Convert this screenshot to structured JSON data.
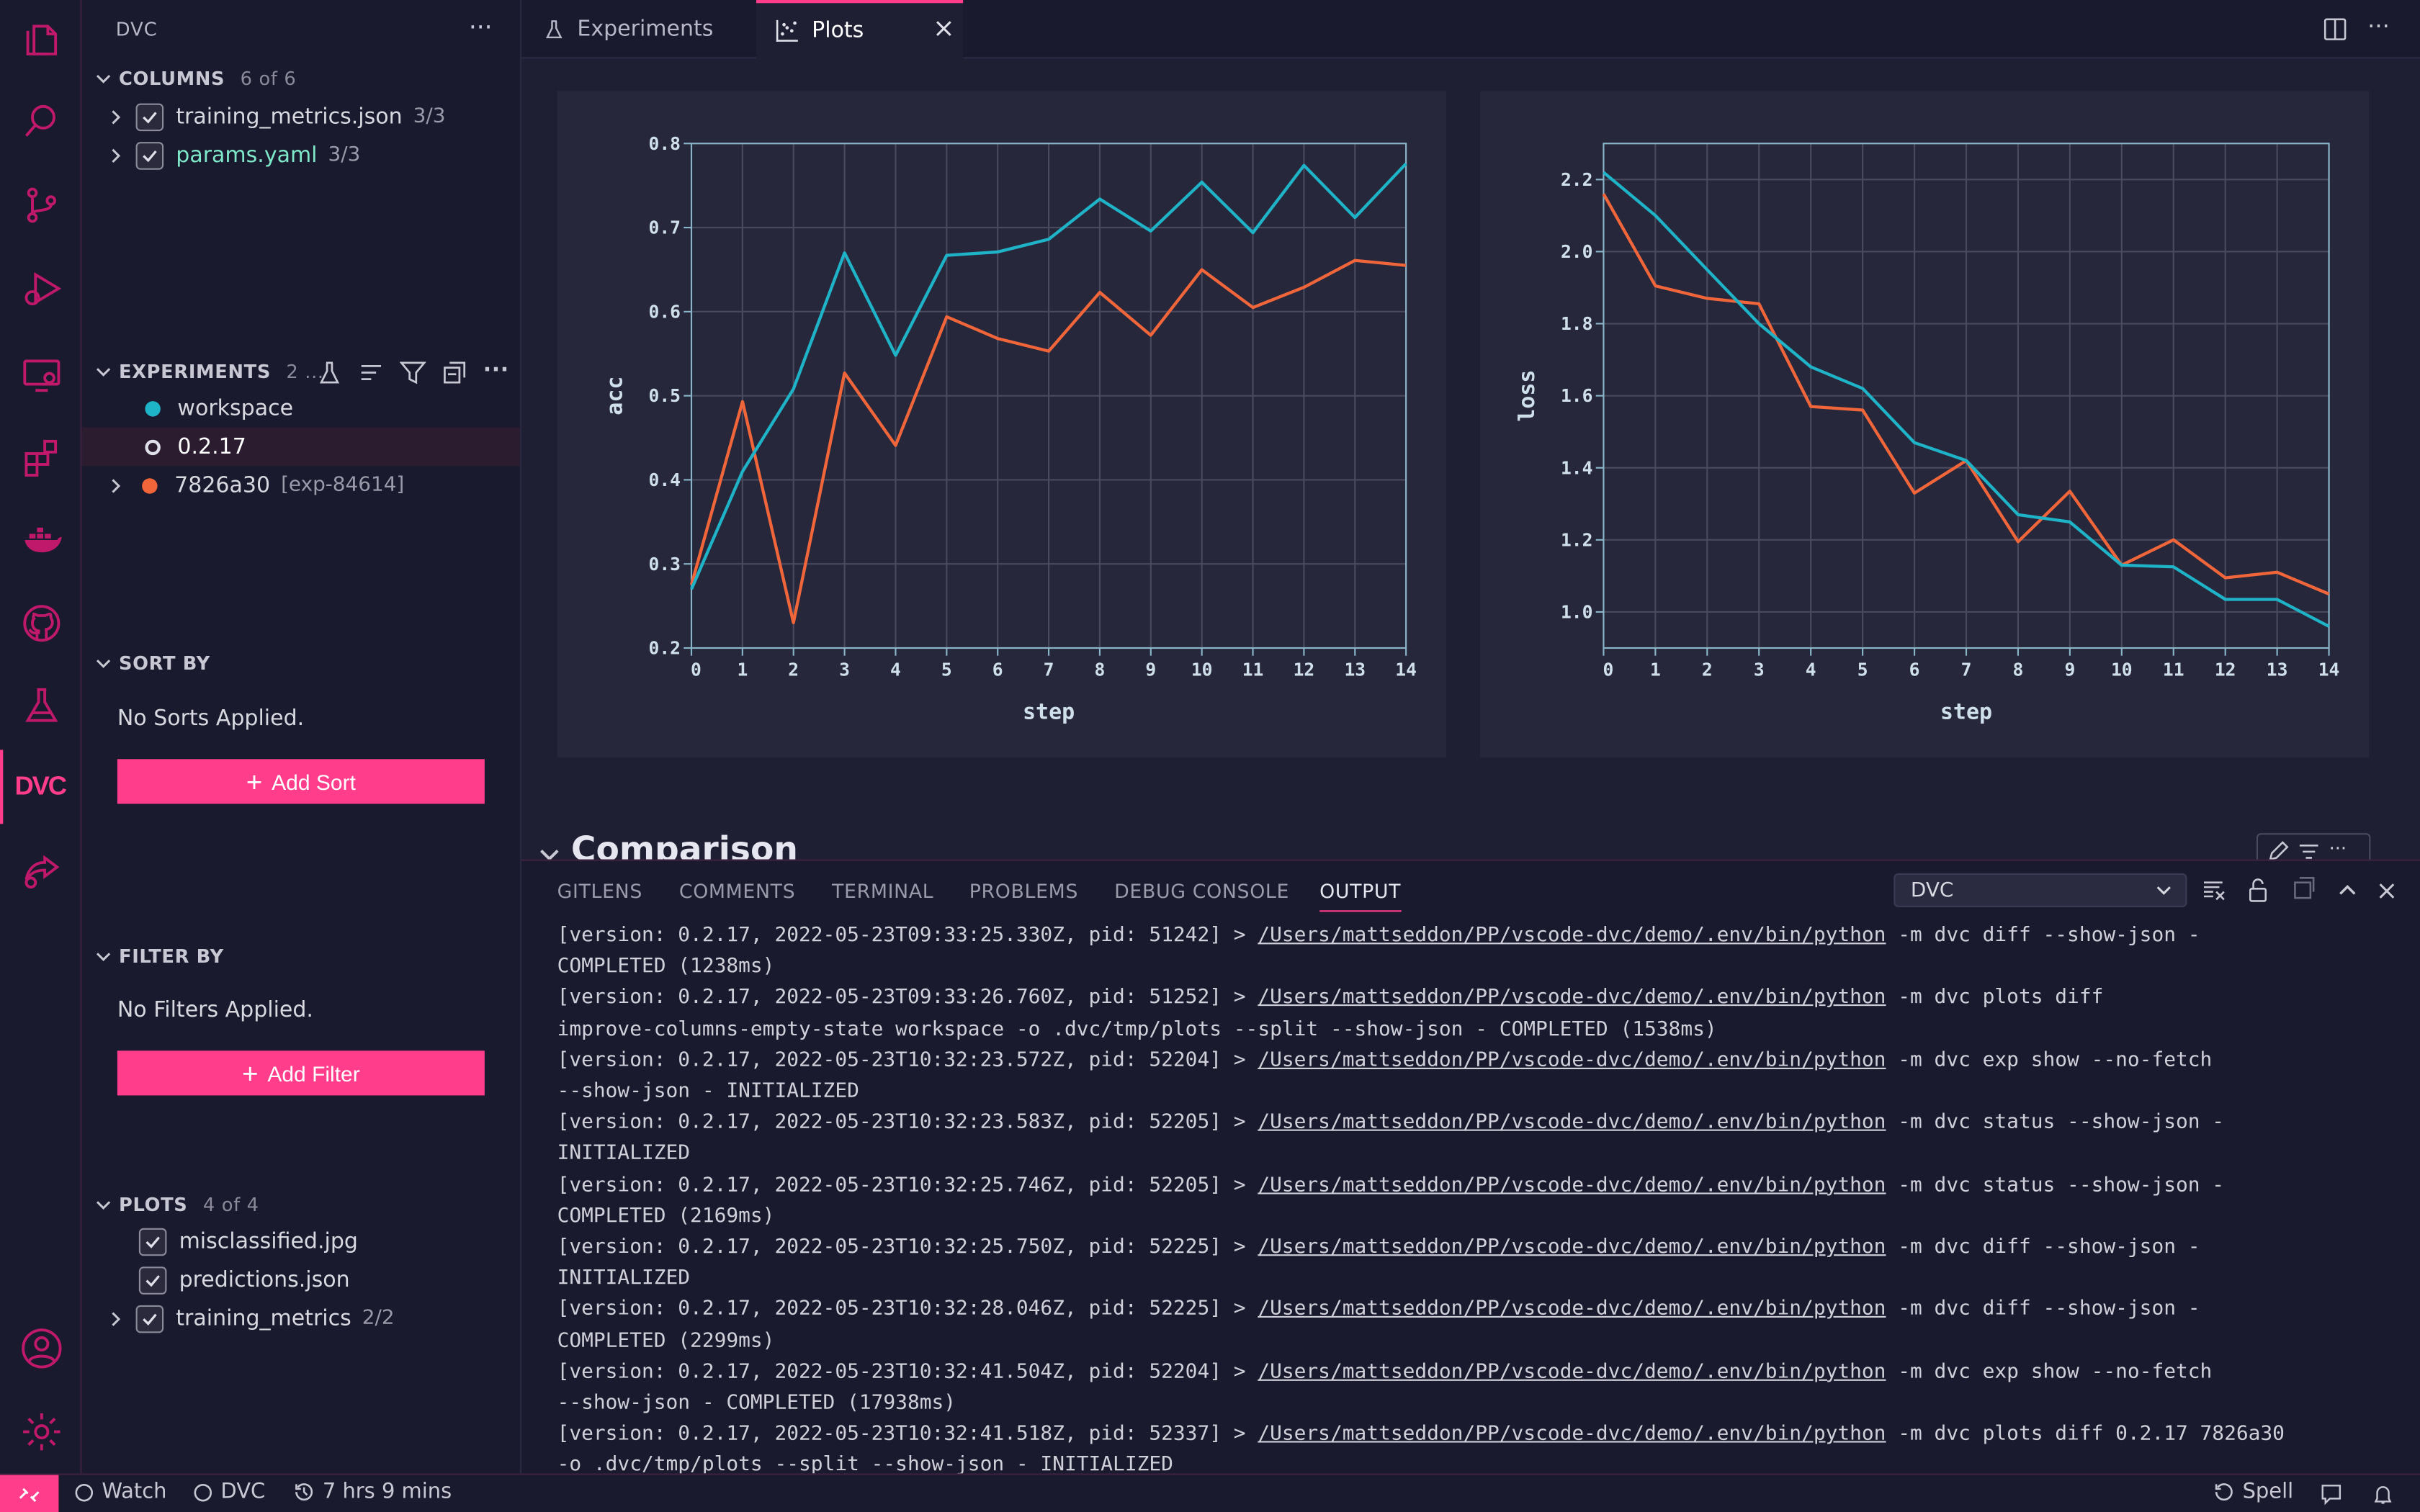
{
  "activity_bar": {
    "icons": [
      "explorer-icon",
      "search-icon",
      "source-control-icon",
      "run-debug-icon",
      "remote-explorer-icon",
      "extensions-icon",
      "docker-icon",
      "github-icon",
      "flask-icon",
      "dvc-icon",
      "share-icon",
      "account-icon",
      "settings-gear-icon"
    ],
    "active": "dvc-icon",
    "dvc_label": "DVC"
  },
  "sidebar": {
    "title": "DVC",
    "columns": {
      "header": "COLUMNS",
      "count": "6 of 6",
      "items": [
        {
          "label": "training_metrics.json",
          "sub": "3/3"
        },
        {
          "label": "params.yaml",
          "sub": "3/3"
        }
      ]
    },
    "experiments": {
      "header": "EXPERIMENTS",
      "count": "2 ...",
      "items": [
        {
          "label": "workspace",
          "sub": "",
          "color": "#1fb3c8"
        },
        {
          "label": "0.2.17",
          "sub": "",
          "color": "hollow"
        },
        {
          "label": "7826a30",
          "sub": "[exp-84614]",
          "color": "#f0663a"
        }
      ]
    },
    "sort": {
      "header": "SORT BY",
      "empty": "No Sorts Applied.",
      "button": "Add Sort"
    },
    "filter": {
      "header": "FILTER BY",
      "empty": "No Filters Applied.",
      "button": "Add Filter"
    },
    "plots": {
      "header": "PLOTS",
      "count": "4 of 4",
      "items": [
        {
          "label": "misclassified.jpg",
          "sub": ""
        },
        {
          "label": "predictions.json",
          "sub": ""
        },
        {
          "label": "training_metrics",
          "sub": "2/2"
        }
      ]
    }
  },
  "editor": {
    "tabs": [
      {
        "label": "Experiments",
        "active": false
      },
      {
        "label": "Plots",
        "active": true
      }
    ],
    "comparison_header": "Comparison"
  },
  "chart_data": [
    {
      "type": "line",
      "xlabel": "step",
      "ylabel": "acc",
      "x": [
        0,
        1,
        2,
        3,
        4,
        5,
        6,
        7,
        8,
        9,
        10,
        11,
        12,
        13,
        14
      ],
      "xlim": [
        0,
        14
      ],
      "ylim": [
        0.2,
        0.8
      ],
      "yticks": [
        "0.2",
        "0.3",
        "0.4",
        "0.5",
        "0.6",
        "0.7",
        "0.8"
      ],
      "grid": true,
      "series": [
        {
          "color": "#1fb3c8",
          "values": [
            0.27,
            0.41,
            0.508,
            0.67,
            0.548,
            0.667,
            0.671,
            0.686,
            0.734,
            0.696,
            0.754,
            0.694,
            0.774,
            0.712,
            0.776
          ]
        },
        {
          "color": "#f0663a",
          "values": [
            0.275,
            0.493,
            0.23,
            0.527,
            0.441,
            0.594,
            0.568,
            0.553,
            0.623,
            0.572,
            0.65,
            0.605,
            0.629,
            0.661,
            0.655
          ]
        }
      ]
    },
    {
      "type": "line",
      "xlabel": "step",
      "ylabel": "loss",
      "x": [
        0,
        1,
        2,
        3,
        4,
        5,
        6,
        7,
        8,
        9,
        10,
        11,
        12,
        13,
        14
      ],
      "xlim": [
        0,
        14
      ],
      "ylim": [
        0.9,
        2.3
      ],
      "yticks": [
        "1.0",
        "1.2",
        "1.4",
        "1.6",
        "1.8",
        "2.0",
        "2.2"
      ],
      "grid": true,
      "series": [
        {
          "color": "#1fb3c8",
          "values": [
            2.22,
            2.1,
            1.95,
            1.8,
            1.68,
            1.62,
            1.47,
            1.42,
            1.27,
            1.25,
            1.13,
            1.125,
            1.035,
            1.035,
            0.96
          ]
        },
        {
          "color": "#f0663a",
          "values": [
            2.16,
            1.905,
            1.87,
            1.855,
            1.57,
            1.56,
            1.33,
            1.42,
            1.195,
            1.335,
            1.13,
            1.2,
            1.095,
            1.11,
            1.05
          ]
        }
      ]
    }
  ],
  "panel": {
    "tabs": [
      "GITLENS",
      "COMMENTS",
      "TERMINAL",
      "PROBLEMS",
      "DEBUG CONSOLE",
      "OUTPUT"
    ],
    "active_tab": "OUTPUT",
    "channel": "DVC",
    "lines": [
      [
        "[version: 0.2.17, 2022-05-23T09:33:25.330Z, pid: 51242] > ",
        "/Users/mattseddon/PP/vscode-dvc/demo/.env/bin/python",
        " -m dvc diff --show-json -"
      ],
      [
        "COMPLETED (1238ms)",
        "",
        ""
      ],
      [
        "[version: 0.2.17, 2022-05-23T09:33:26.760Z, pid: 51252] > ",
        "/Users/mattseddon/PP/vscode-dvc/demo/.env/bin/python",
        " -m dvc plots diff"
      ],
      [
        "improve-columns-empty-state workspace -o .dvc/tmp/plots --split --show-json - COMPLETED (1538ms)",
        "",
        ""
      ],
      [
        "[version: 0.2.17, 2022-05-23T10:32:23.572Z, pid: 52204] > ",
        "/Users/mattseddon/PP/vscode-dvc/demo/.env/bin/python",
        " -m dvc exp show --no-fetch"
      ],
      [
        "--show-json - INITIALIZED",
        "",
        ""
      ],
      [
        "[version: 0.2.17, 2022-05-23T10:32:23.583Z, pid: 52205] > ",
        "/Users/mattseddon/PP/vscode-dvc/demo/.env/bin/python",
        " -m dvc status --show-json -"
      ],
      [
        "INITIALIZED",
        "",
        ""
      ],
      [
        "[version: 0.2.17, 2022-05-23T10:32:25.746Z, pid: 52205] > ",
        "/Users/mattseddon/PP/vscode-dvc/demo/.env/bin/python",
        " -m dvc status --show-json -"
      ],
      [
        "COMPLETED (2169ms)",
        "",
        ""
      ],
      [
        "[version: 0.2.17, 2022-05-23T10:32:25.750Z, pid: 52225] > ",
        "/Users/mattseddon/PP/vscode-dvc/demo/.env/bin/python",
        " -m dvc diff --show-json -"
      ],
      [
        "INITIALIZED",
        "",
        ""
      ],
      [
        "[version: 0.2.17, 2022-05-23T10:32:28.046Z, pid: 52225] > ",
        "/Users/mattseddon/PP/vscode-dvc/demo/.env/bin/python",
        " -m dvc diff --show-json -"
      ],
      [
        "COMPLETED (2299ms)",
        "",
        ""
      ],
      [
        "[version: 0.2.17, 2022-05-23T10:32:41.504Z, pid: 52204] > ",
        "/Users/mattseddon/PP/vscode-dvc/demo/.env/bin/python",
        " -m dvc exp show --no-fetch"
      ],
      [
        "--show-json - COMPLETED (17938ms)",
        "",
        ""
      ],
      [
        "[version: 0.2.17, 2022-05-23T10:32:41.518Z, pid: 52337] > ",
        "/Users/mattseddon/PP/vscode-dvc/demo/.env/bin/python",
        " -m dvc plots diff 0.2.17 7826a30"
      ],
      [
        "-o .dvc/tmp/plots --split --show-json - INITIALIZED",
        "",
        ""
      ]
    ]
  },
  "statusbar": {
    "watch": "Watch",
    "dvc": "DVC",
    "time": "7 hrs 9 mins",
    "spell": "Spell"
  },
  "colors": {
    "accent": "#ff3d8b",
    "series_workspace": "#1fb3c8",
    "series_exp": "#f0663a"
  }
}
